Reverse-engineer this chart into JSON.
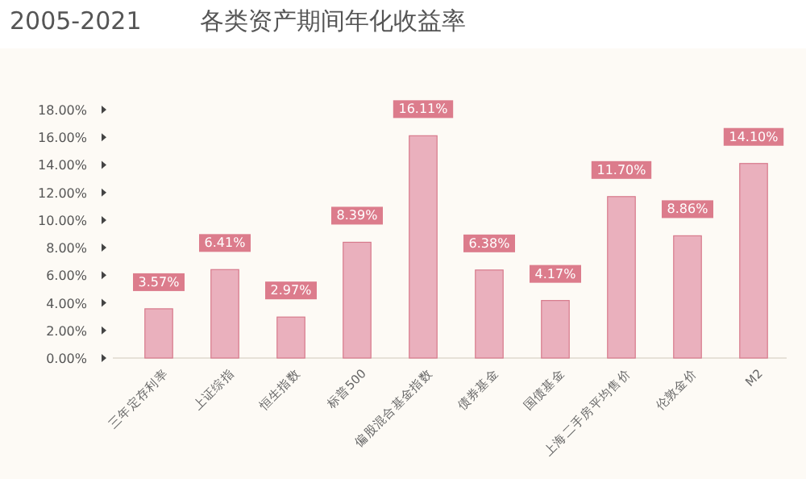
{
  "chart_data": {
    "type": "bar",
    "subtitle": "2005-2021",
    "title": "各类资产期间年化收益率",
    "categories": [
      "三年定存利率",
      "上证综指",
      "恒生指数",
      "标普500",
      "偏股混合基金指数",
      "债券基金",
      "国债基金",
      "上海二手房平均售价",
      "伦敦金价",
      "M2"
    ],
    "values": [
      3.57,
      6.41,
      2.97,
      8.39,
      16.11,
      6.38,
      4.17,
      11.7,
      8.86,
      14.1
    ],
    "value_labels": [
      "3.57%",
      "6.41%",
      "2.97%",
      "8.39%",
      "16.11%",
      "6.38%",
      "4.17%",
      "11.70%",
      "8.86%",
      "14.10%"
    ],
    "color": "#eab0bd",
    "ylim": [
      0,
      18
    ],
    "yticks": [
      {
        "value": 0,
        "label": "0.00%"
      },
      {
        "value": 2,
        "label": "2.00%"
      },
      {
        "value": 4,
        "label": "4.00%"
      },
      {
        "value": 6,
        "label": "6.00%"
      },
      {
        "value": 8,
        "label": "8.00%"
      },
      {
        "value": 10,
        "label": "10.00%"
      },
      {
        "value": 12,
        "label": "12.00%"
      },
      {
        "value": 14,
        "label": "14.00%"
      },
      {
        "value": 16,
        "label": "16.00%"
      },
      {
        "value": 18,
        "label": "18.00%"
      }
    ],
    "grid": false
  }
}
